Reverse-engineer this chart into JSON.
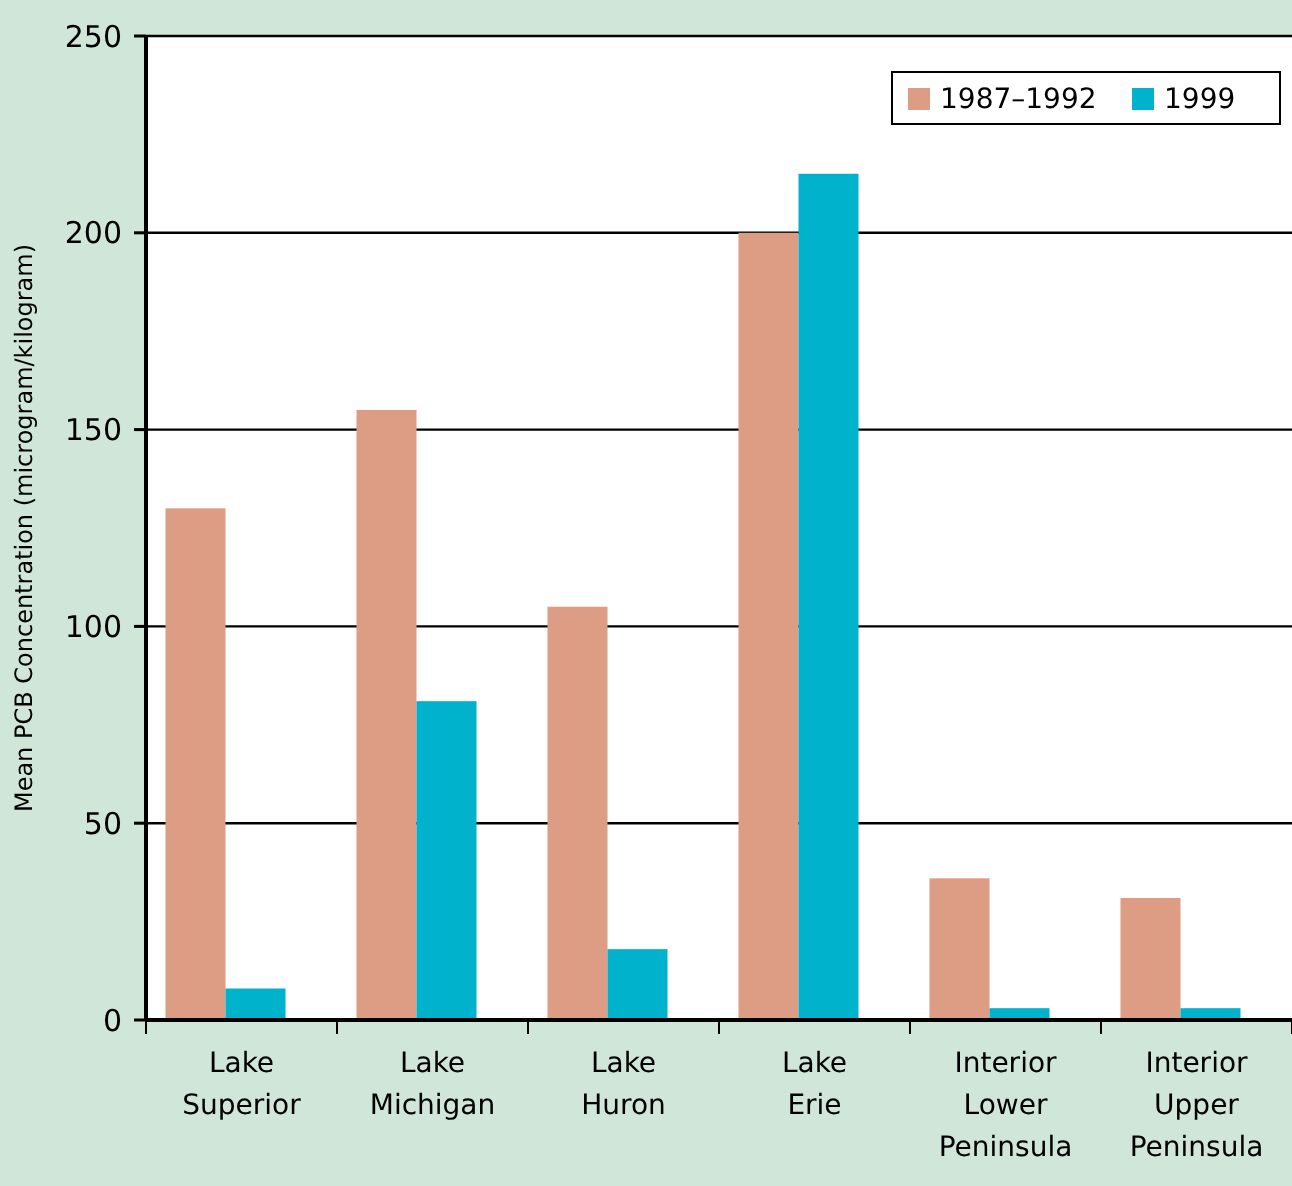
{
  "chart_data": {
    "type": "bar",
    "ylabel": "Mean PCB Concentration (microgram/kilogram)",
    "categories": [
      "Lake Superior",
      "Lake Michigan",
      "Lake Huron",
      "Lake Erie",
      "Interior Lower Peninsula",
      "Interior Upper Peninsula"
    ],
    "series": [
      {
        "name": "1987–1992",
        "color": "#dd9c84",
        "values": [
          130,
          155,
          105,
          200,
          36,
          31
        ]
      },
      {
        "name": "1999",
        "color": "#00b2cc",
        "values": [
          8,
          81,
          18,
          215,
          3,
          3
        ]
      }
    ],
    "ylim": [
      0,
      250
    ],
    "yticks": [
      0,
      50,
      100,
      150,
      200,
      250
    ],
    "grid": "y",
    "legend": "top right"
  }
}
